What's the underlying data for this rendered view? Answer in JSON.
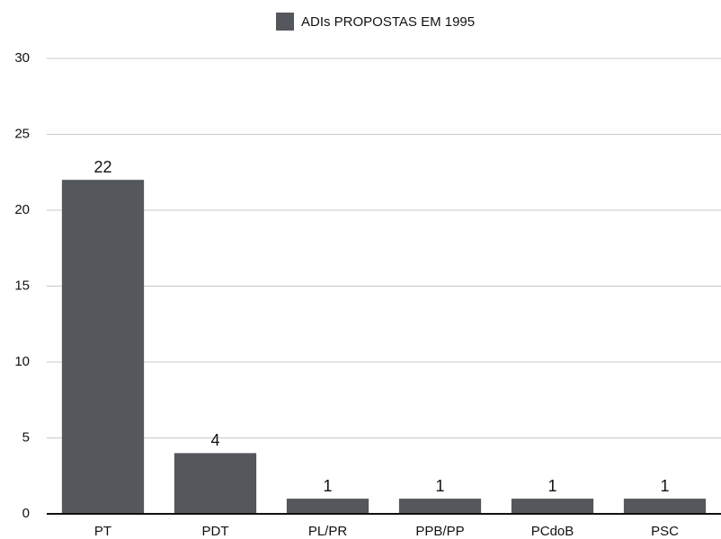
{
  "chart_data": {
    "type": "bar",
    "categories": [
      "PT",
      "PDT",
      "PL/PR",
      "PPB/PP",
      "PCdoB",
      "PSC"
    ],
    "series": [
      {
        "name": "ADIs PROPOSTAS EM 1995",
        "color": "#54575c",
        "values": [
          22,
          4,
          1,
          1,
          1,
          1
        ]
      }
    ],
    "ylim": [
      0,
      30
    ],
    "yticks": [
      0,
      5,
      10,
      15,
      20,
      25,
      30
    ],
    "grid": true,
    "legend": "top"
  }
}
